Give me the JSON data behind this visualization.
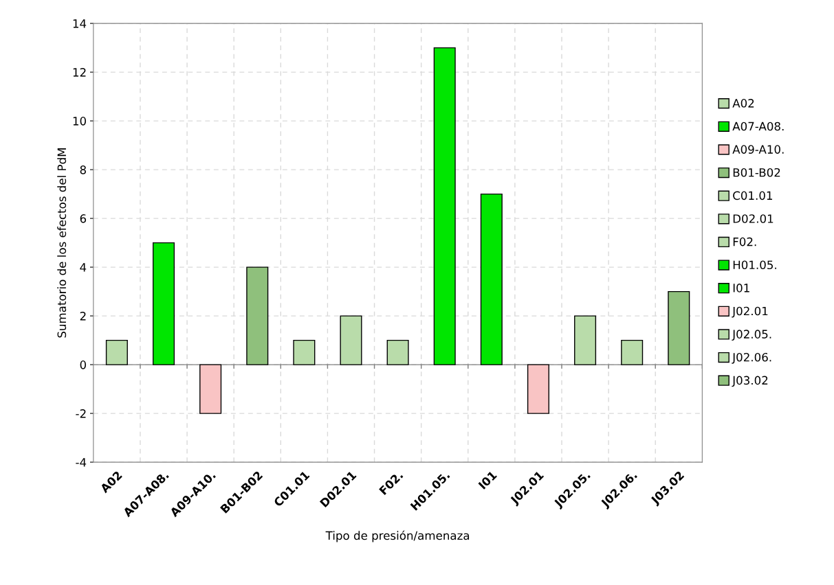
{
  "chart_data": {
    "type": "bar",
    "xlabel": "Tipo de presión/amenaza",
    "ylabel": "Sumatorio de los efectos del PdM",
    "categories": [
      "A02",
      "A07-A08.",
      "A09-A10.",
      "B01-B02",
      "C01.01",
      "D02.01",
      "F02.",
      "H01.05.",
      "I01",
      "J02.01",
      "J02.05.",
      "J02.06.",
      "J03.02"
    ],
    "series": [
      {
        "name": "A02",
        "color": "#b9dcaa",
        "values": [
          1,
          null,
          null,
          null,
          null,
          null,
          null,
          null,
          null,
          null,
          null,
          null,
          null
        ]
      },
      {
        "name": "A07-A08.",
        "color": "#00e600",
        "values": [
          null,
          5,
          null,
          null,
          null,
          null,
          null,
          null,
          null,
          null,
          null,
          null,
          null
        ]
      },
      {
        "name": "A09-A10.",
        "color": "#f9c4c4",
        "values": [
          null,
          null,
          -2,
          null,
          null,
          null,
          null,
          null,
          null,
          null,
          null,
          null,
          null
        ]
      },
      {
        "name": "B01-B02",
        "color": "#8fc07c",
        "values": [
          null,
          null,
          null,
          4,
          null,
          null,
          null,
          null,
          null,
          null,
          null,
          null,
          null
        ]
      },
      {
        "name": "C01.01",
        "color": "#b9dcaa",
        "values": [
          null,
          null,
          null,
          null,
          1,
          null,
          null,
          null,
          null,
          null,
          null,
          null,
          null
        ]
      },
      {
        "name": "D02.01",
        "color": "#b9dcaa",
        "values": [
          null,
          null,
          null,
          null,
          null,
          2,
          null,
          null,
          null,
          null,
          null,
          null,
          null
        ]
      },
      {
        "name": "F02.",
        "color": "#b9dcaa",
        "values": [
          null,
          null,
          null,
          null,
          null,
          null,
          1,
          null,
          null,
          null,
          null,
          null,
          null
        ]
      },
      {
        "name": "H01.05.",
        "color": "#00e600",
        "values": [
          null,
          null,
          null,
          null,
          null,
          null,
          null,
          13,
          null,
          null,
          null,
          null,
          null
        ]
      },
      {
        "name": "I01",
        "color": "#00e600",
        "values": [
          null,
          null,
          null,
          null,
          null,
          null,
          null,
          null,
          7,
          null,
          null,
          null,
          null
        ]
      },
      {
        "name": "J02.01",
        "color": "#f9c4c4",
        "values": [
          null,
          null,
          null,
          null,
          null,
          null,
          null,
          null,
          null,
          -2,
          null,
          null,
          null
        ]
      },
      {
        "name": "J02.05.",
        "color": "#b9dcaa",
        "values": [
          null,
          null,
          null,
          null,
          null,
          null,
          null,
          null,
          null,
          null,
          2,
          null,
          null
        ]
      },
      {
        "name": "J02.06.",
        "color": "#b9dcaa",
        "values": [
          null,
          null,
          null,
          null,
          null,
          null,
          null,
          null,
          null,
          null,
          null,
          1,
          null
        ]
      },
      {
        "name": "J03.02",
        "color": "#8fc07c",
        "values": [
          null,
          null,
          null,
          null,
          null,
          null,
          null,
          null,
          null,
          null,
          null,
          null,
          3
        ]
      }
    ],
    "ylim": [
      -4,
      14
    ],
    "yticks": [
      -4,
      -2,
      0,
      2,
      4,
      6,
      8,
      10,
      12,
      14
    ],
    "grid": true,
    "legend": "right"
  }
}
